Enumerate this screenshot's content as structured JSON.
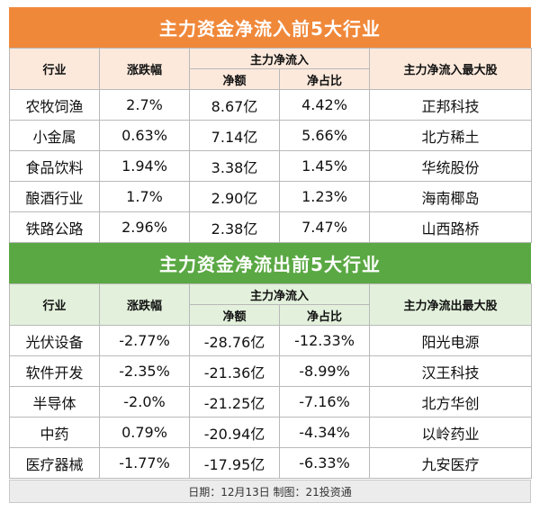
{
  "inflow": {
    "title": "主力资金净流入前5大行业",
    "headers": {
      "industry": "行业",
      "change": "涨跌幅",
      "main_flow": "主力净流入",
      "net_amount": "净额",
      "net_ratio": "净占比",
      "top_stock": "主力净流入最大股"
    },
    "rows": [
      {
        "industry": "农牧饲渔",
        "change": "2.7%",
        "net_amount": "8.67亿",
        "net_ratio": "4.42%",
        "top_stock": "正邦科技"
      },
      {
        "industry": "小金属",
        "change": "0.63%",
        "net_amount": "7.14亿",
        "net_ratio": "5.66%",
        "top_stock": "北方稀土"
      },
      {
        "industry": "食品饮料",
        "change": "1.94%",
        "net_amount": "3.38亿",
        "net_ratio": "1.45%",
        "top_stock": "华统股份"
      },
      {
        "industry": "酿酒行业",
        "change": "1.7%",
        "net_amount": "2.90亿",
        "net_ratio": "1.23%",
        "top_stock": "海南椰岛"
      },
      {
        "industry": "铁路公路",
        "change": "2.96%",
        "net_amount": "2.38亿",
        "net_ratio": "7.47%",
        "top_stock": "山西路桥"
      }
    ]
  },
  "outflow": {
    "title": "主力资金净流出前5大行业",
    "headers": {
      "industry": "行业",
      "change": "涨跌幅",
      "main_flow": "主力净流入",
      "net_amount": "净额",
      "net_ratio": "净占比",
      "top_stock": "主力净流出最大股"
    },
    "rows": [
      {
        "industry": "光伏设备",
        "change": "-2.77%",
        "net_amount": "-28.76亿",
        "net_ratio": "-12.33%",
        "top_stock": "阳光电源"
      },
      {
        "industry": "软件开发",
        "change": "-2.35%",
        "net_amount": "-21.36亿",
        "net_ratio": "-8.99%",
        "top_stock": "汉王科技"
      },
      {
        "industry": "半导体",
        "change": "-2.0%",
        "net_amount": "-21.25亿",
        "net_ratio": "-7.16%",
        "top_stock": "北方华创"
      },
      {
        "industry": "中药",
        "change": "0.79%",
        "net_amount": "-20.94亿",
        "net_ratio": "-4.34%",
        "top_stock": "以岭药业"
      },
      {
        "industry": "医疗器械",
        "change": "-1.77%",
        "net_amount": "-17.95亿",
        "net_ratio": "-6.33%",
        "top_stock": "九安医疗"
      }
    ]
  },
  "footer": "日期：12月13日  制图：21投资通",
  "colors": {
    "orange": "#f0883a",
    "green": "#5aa843"
  }
}
